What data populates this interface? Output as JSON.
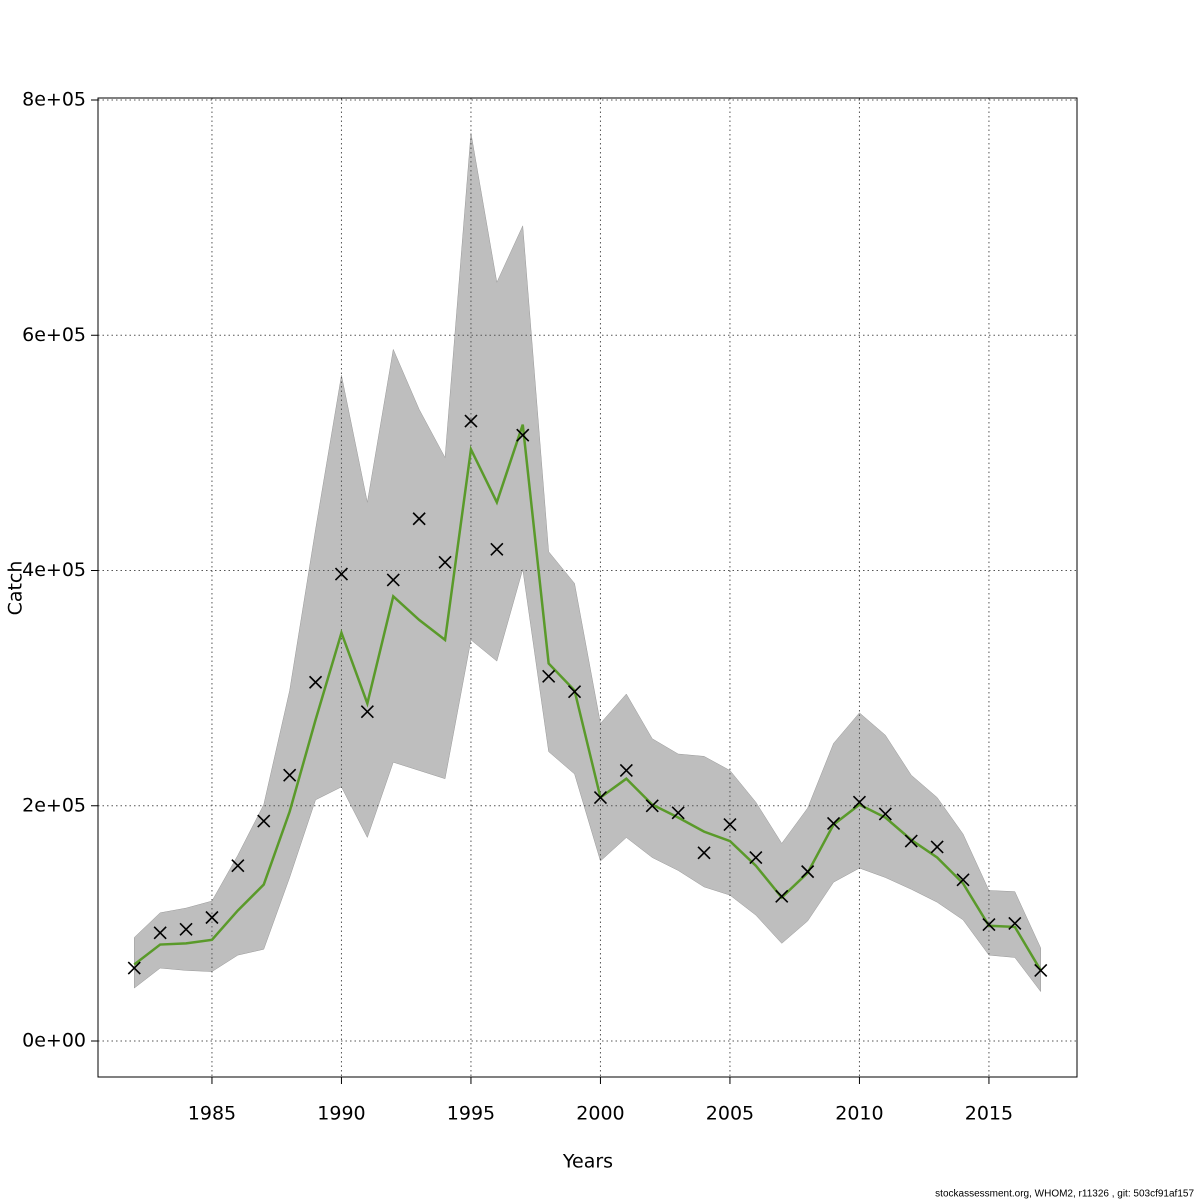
{
  "chart_data": {
    "type": "line",
    "xlabel": "Years",
    "ylabel": "Catch",
    "footer": "stockassessment.org, WHOM2, r11326 , git: 503cf91af157",
    "x": [
      1982,
      1983,
      1984,
      1985,
      1986,
      1987,
      1988,
      1989,
      1990,
      1991,
      1992,
      1993,
      1994,
      1995,
      1996,
      1997,
      1998,
      1999,
      2000,
      2001,
      2002,
      2003,
      2004,
      2005,
      2006,
      2007,
      2008,
      2009,
      2010,
      2011,
      2012,
      2013,
      2014,
      2015,
      2016,
      2017
    ],
    "observed": {
      "color": "#000000",
      "values": [
        62000,
        92000,
        95000,
        105000,
        149000,
        187000,
        226000,
        305000,
        397000,
        280000,
        392000,
        444000,
        407000,
        527000,
        418000,
        515000,
        310000,
        297000,
        207000,
        230000,
        200000,
        194000,
        160000,
        184000,
        156000,
        123000,
        144000,
        185000,
        203000,
        193000,
        170000,
        165000,
        137000,
        99000,
        100000,
        60000
      ]
    },
    "band": {
      "color": "#bebebe",
      "lower": [
        45000,
        62000,
        60000,
        59000,
        73000,
        78000,
        139000,
        205000,
        216000,
        173000,
        237000,
        230000,
        223000,
        341000,
        323000,
        401000,
        246000,
        227000,
        153000,
        173000,
        156000,
        145000,
        131000,
        124000,
        107000,
        83000,
        102000,
        135000,
        147000,
        139000,
        129000,
        118000,
        103000,
        73000,
        71000,
        42000
      ],
      "upper": [
        88000,
        109000,
        113000,
        119000,
        158000,
        201000,
        298000,
        435000,
        566000,
        458000,
        588000,
        537000,
        496000,
        772000,
        645000,
        693000,
        416000,
        389000,
        270000,
        295000,
        257000,
        244000,
        242000,
        230000,
        203000,
        168000,
        198000,
        253000,
        279000,
        260000,
        226000,
        207000,
        176000,
        128000,
        127000,
        79000
      ]
    },
    "series": [
      {
        "color": "#5a9a2a",
        "values": [
          65000,
          82000,
          83000,
          86000,
          111000,
          133000,
          195000,
          273000,
          347000,
          287000,
          378000,
          358000,
          341000,
          503000,
          458000,
          524000,
          321000,
          298000,
          207000,
          223000,
          201000,
          190000,
          178000,
          170000,
          149000,
          122000,
          143000,
          184000,
          201000,
          190000,
          171000,
          156000,
          134000,
          98000,
          97000,
          60000
        ]
      }
    ],
    "xlim": [
      1980.6,
      2018.4
    ],
    "ylim": [
      -30600,
      801700
    ],
    "xticks": [
      1985,
      1990,
      1995,
      2000,
      2005,
      2010,
      2015
    ],
    "yticks": [
      {
        "value": 0,
        "label": "0e+00"
      },
      {
        "value": 200000,
        "label": "2e+05"
      },
      {
        "value": 400000,
        "label": "4e+05"
      },
      {
        "value": 600000,
        "label": "6e+05"
      },
      {
        "value": 800000,
        "label": "8e+05"
      }
    ],
    "grid": true
  }
}
